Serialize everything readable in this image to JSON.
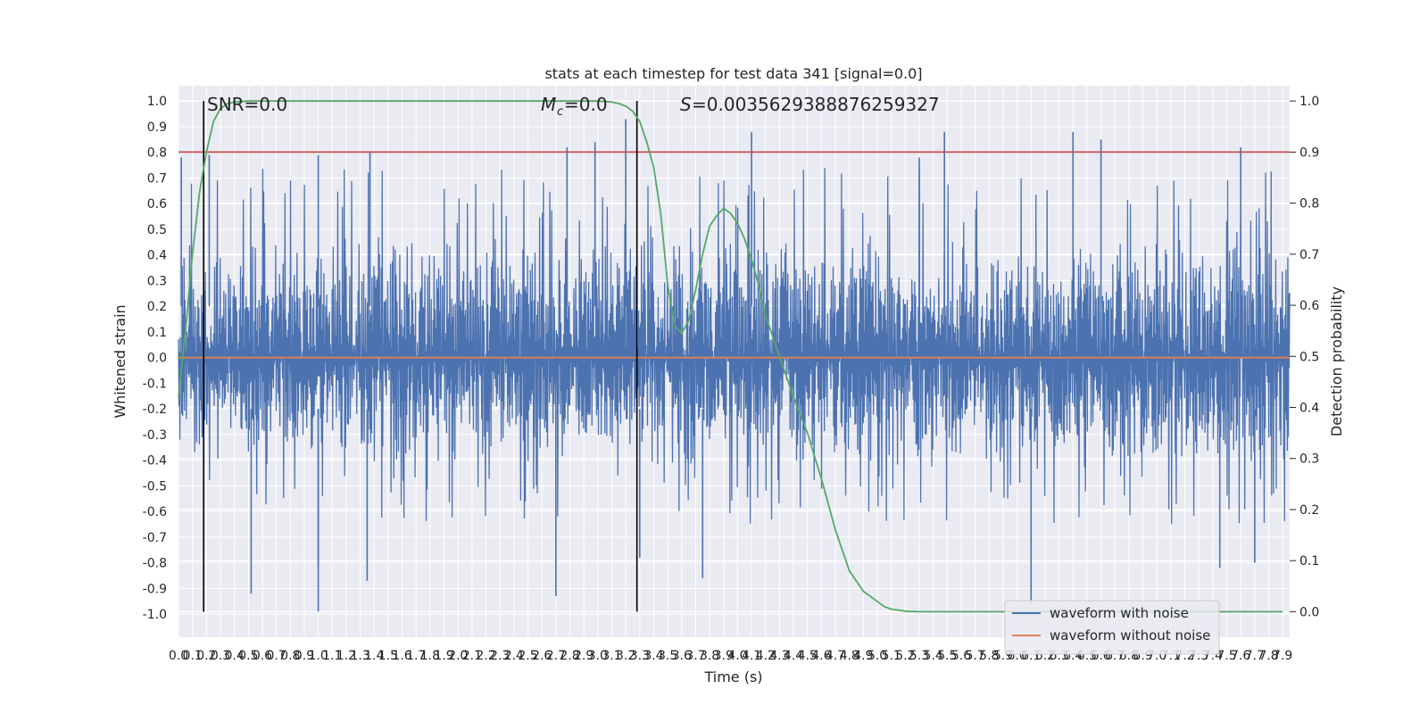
{
  "chart_data": {
    "type": "line",
    "title": "stats at each timestep for test data 341 [signal=0.0]",
    "xlabel": "Time (s)",
    "ylabel": "Whitened strain",
    "y2label": "Detection probability",
    "xlim": [
      0.0,
      7.95
    ],
    "ylim": [
      -1.09,
      1.06
    ],
    "y2lim": [
      -0.05,
      1.03
    ],
    "x_ticks": [
      "0.0",
      "0.1",
      "0.2",
      "0.3",
      "0.4",
      "0.5",
      "0.6",
      "0.7",
      "0.8",
      "0.9",
      "1.0",
      "1.1",
      "1.2",
      "1.3",
      "1.4",
      "1.5",
      "1.6",
      "1.7",
      "1.8",
      "1.9",
      "2.0",
      "2.1",
      "2.2",
      "2.3",
      "2.4",
      "2.5",
      "2.6",
      "2.7",
      "2.8",
      "2.9",
      "3.0",
      "3.1",
      "3.2",
      "3.3",
      "3.4",
      "3.5",
      "3.6",
      "3.7",
      "3.8",
      "3.9",
      "4.0",
      "4.1",
      "4.2",
      "4.3",
      "4.4",
      "4.5",
      "4.6",
      "4.7",
      "4.8",
      "4.9",
      "5.0",
      "5.1",
      "5.2",
      "5.3",
      "5.4",
      "5.5",
      "5.6",
      "5.7",
      "5.8",
      "5.9",
      "6.0",
      "6.1",
      "6.2",
      "6.3",
      "6.4",
      "6.5",
      "6.6",
      "6.7",
      "6.8",
      "6.9",
      "7.0",
      "7.1",
      "7.2",
      "7.3",
      "7.4",
      "7.5",
      "7.6",
      "7.7",
      "7.8",
      "7.9"
    ],
    "y_ticks": [
      "1.0",
      "0.9",
      "0.8",
      "0.7",
      "0.6",
      "0.5",
      "0.4",
      "0.3",
      "0.2",
      "0.1",
      "0.0",
      "-0.1",
      "-0.2",
      "-0.3",
      "-0.4",
      "-0.5",
      "-0.6",
      "-0.7",
      "-0.8",
      "-0.9",
      "-1.0"
    ],
    "y2_ticks": [
      "1.0",
      "0.9",
      "0.8",
      "0.7",
      "0.6",
      "0.5",
      "0.4",
      "0.3",
      "0.2",
      "0.1",
      "0.0"
    ],
    "annotations": {
      "snr": "SNR=0.0",
      "mc": "=0.0",
      "s": "=0.003562938887625932​7"
    },
    "threshold_probability": 0.9,
    "vertical_markers": [
      0.18,
      3.28
    ],
    "legend": {
      "placement": "lower-right",
      "entries": [
        "waveform with noise",
        "waveform without noise"
      ]
    },
    "colors": {
      "noise": "#4c72b0",
      "clean": "#dd8452",
      "probability": "#55a868",
      "threshold": "#c44e52",
      "markers": "#000000",
      "background": "#eaeaf2",
      "grid": "#ffffff"
    },
    "noise_envelope": {
      "upper_typical": 0.5,
      "lower_typical": -0.45,
      "upper_peaks": [
        [
          0.02,
          0.78
        ],
        [
          0.22,
          0.79
        ],
        [
          1.0,
          0.79
        ],
        [
          1.37,
          0.8
        ],
        [
          2.78,
          0.82
        ],
        [
          2.98,
          0.84
        ],
        [
          3.2,
          0.93
        ],
        [
          4.1,
          0.88
        ],
        [
          5.3,
          0.78
        ],
        [
          5.48,
          0.88
        ],
        [
          6.4,
          0.88
        ],
        [
          6.6,
          0.85
        ],
        [
          7.6,
          0.82
        ]
      ],
      "lower_peaks": [
        [
          0.52,
          -0.92
        ],
        [
          1.0,
          -0.99
        ],
        [
          1.0,
          -0.81
        ],
        [
          1.35,
          -0.87
        ],
        [
          2.7,
          -0.93
        ],
        [
          3.3,
          -0.78
        ],
        [
          3.75,
          -0.86
        ],
        [
          6.1,
          -0.96
        ],
        [
          7.45,
          -0.82
        ],
        [
          7.7,
          -0.8
        ]
      ]
    },
    "series": [
      {
        "name": "waveform with noise",
        "kind": "noise"
      },
      {
        "name": "waveform without noise",
        "x": [
          0.0,
          7.95
        ],
        "y": [
          0.0,
          0.0
        ]
      },
      {
        "kind": "probability",
        "x": [
          0.0,
          0.05,
          0.1,
          0.15,
          0.2,
          0.25,
          0.3,
          0.35,
          0.4,
          0.5,
          0.6,
          1.0,
          1.5,
          2.0,
          2.5,
          3.0,
          3.1,
          3.15,
          3.2,
          3.25,
          3.3,
          3.35,
          3.4,
          3.45,
          3.5,
          3.55,
          3.6,
          3.65,
          3.7,
          3.75,
          3.8,
          3.85,
          3.9,
          3.95,
          4.0,
          4.05,
          4.1,
          4.15,
          4.2,
          4.3,
          4.4,
          4.5,
          4.6,
          4.7,
          4.8,
          4.9,
          5.0,
          5.05,
          5.1,
          5.15,
          5.2,
          5.3,
          5.5,
          6.0,
          7.0,
          7.9
        ],
        "y": [
          0.42,
          0.55,
          0.7,
          0.82,
          0.9,
          0.96,
          0.985,
          0.995,
          0.998,
          1.0,
          1.0,
          1.0,
          1.0,
          1.0,
          1.0,
          1.0,
          0.998,
          0.995,
          0.99,
          0.98,
          0.96,
          0.92,
          0.87,
          0.78,
          0.64,
          0.56,
          0.545,
          0.57,
          0.63,
          0.7,
          0.755,
          0.775,
          0.79,
          0.78,
          0.76,
          0.73,
          0.69,
          0.64,
          0.58,
          0.5,
          0.42,
          0.35,
          0.26,
          0.16,
          0.08,
          0.04,
          0.02,
          0.01,
          0.005,
          0.003,
          0.001,
          0.0,
          0.0,
          0.0,
          0.0,
          0.0
        ]
      }
    ]
  }
}
